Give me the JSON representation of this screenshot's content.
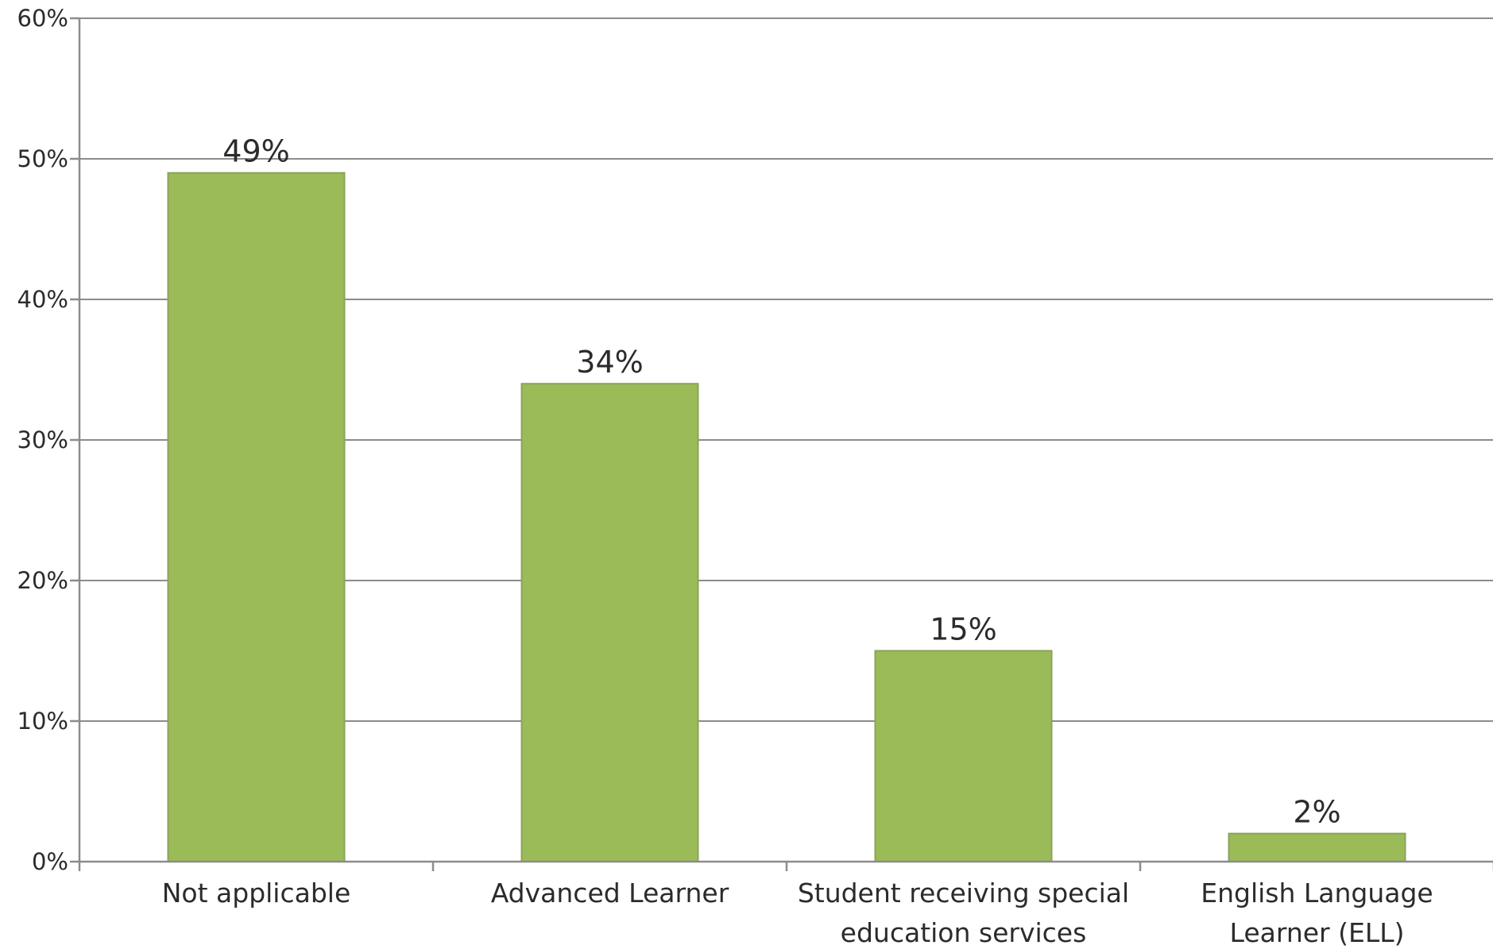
{
  "chart_data": {
    "type": "bar",
    "categories": [
      [
        "Not applicable"
      ],
      [
        "Advanced Learner"
      ],
      [
        "Student receiving special",
        "education services"
      ],
      [
        "English Language",
        "Learner (ELL)"
      ]
    ],
    "values": [
      49,
      34,
      15,
      2
    ],
    "data_labels": [
      "49%",
      "34%",
      "15%",
      "2%"
    ],
    "ylim": [
      0,
      60
    ],
    "yticks": [
      0,
      10,
      20,
      30,
      40,
      50,
      60
    ],
    "ytick_labels": [
      "0%",
      "10%",
      "20%",
      "30%",
      "40%",
      "50%",
      "60%"
    ],
    "grid": true,
    "legend": "none",
    "bar_color": "#9bbb59",
    "gridline_color": "#8c8c8c",
    "title": "",
    "xlabel": "",
    "ylabel": ""
  }
}
